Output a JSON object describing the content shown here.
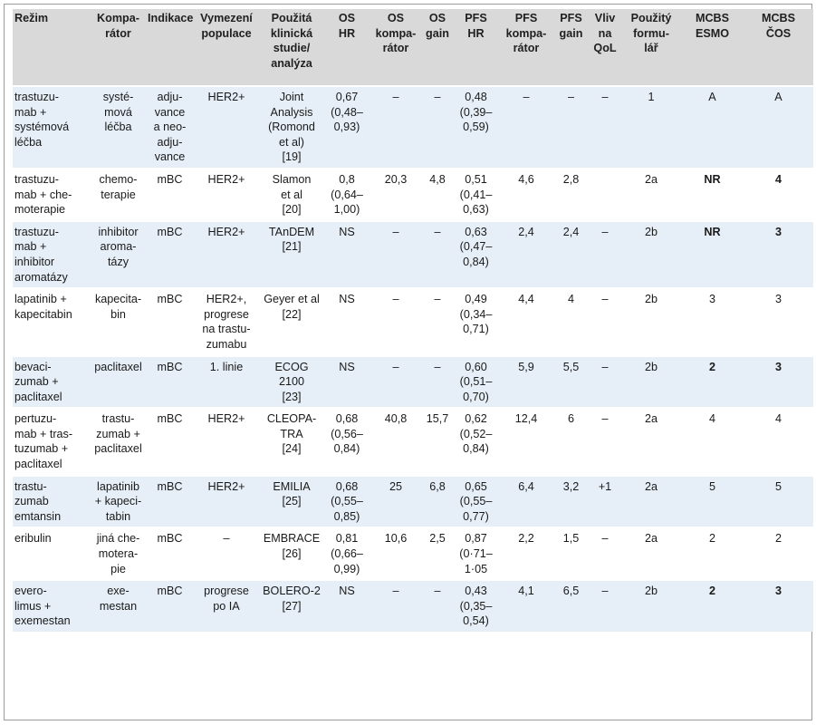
{
  "columns": [
    "Režim",
    "Kompa-\nrátor",
    "Indikace",
    "Vymezení\npopulace",
    "Použitá\nklinická\nstudie/\nanalýza",
    "OS\nHR",
    "OS\nkompa-\nrátor",
    "OS\ngain",
    "PFS\nHR",
    "PFS\nkompa-\nrátor",
    "PFS\ngain",
    "Vliv\nna\nQoL",
    "Použitý\nformu-\nlář",
    "MCBS\nESMO",
    "MCBS\nČOS"
  ],
  "rows": [
    {
      "cells": [
        "trastuzu-\nmab +\nsystémová\nléčba",
        "systé-\nmová\nléčba",
        "adju-\nvance\na neo-\nadju-\nvance",
        "HER2+",
        "Joint\nAnalysis\n(Romond\net al)\n[19]",
        "0,67\n(0,48–\n0,93)",
        "–",
        "–",
        "0,48\n(0,39–\n0,59)",
        "–",
        "–",
        "–",
        "1",
        "A",
        "A"
      ],
      "bold": []
    },
    {
      "cells": [
        "trastuzu-\nmab + che-\nmoterapie",
        "chemo-\nterapie",
        "mBC",
        "HER2+",
        "Slamon\net al\n[20]",
        "0,8\n(0,64–\n1,00)",
        "20,3",
        "4,8",
        "0,51\n(0,41–\n0,63)",
        "4,6",
        "2,8",
        "",
        "2a",
        "NR",
        "4"
      ],
      "bold": [
        13,
        14
      ]
    },
    {
      "cells": [
        "trastuzu-\nmab +\ninhibitor\naromatázy",
        "inhibitor\naroma-\ntázy",
        "mBC",
        "HER2+",
        "TAnDEM\n[21]",
        "NS",
        "–",
        "–",
        "0,63\n(0,47–\n0,84)",
        "2,4",
        "2,4",
        "–",
        "2b",
        "NR",
        "3"
      ],
      "bold": [
        13,
        14
      ]
    },
    {
      "cells": [
        "lapatinib +\nkapecitabin",
        "kapecita-\nbin",
        "mBC",
        "HER2+,\nprogrese\nna trastu-\nzumabu",
        "Geyer et al\n[22]",
        "NS",
        "–",
        "–",
        "0,49\n(0,34–\n0,71)",
        "4,4",
        "4",
        "–",
        "2b",
        "3",
        "3"
      ],
      "bold": []
    },
    {
      "cells": [
        "bevaci-\nzumab +\npaclitaxel",
        "paclitaxel",
        "mBC",
        "1. linie",
        "ECOG\n2100\n[23]",
        "NS",
        "–",
        "–",
        "0,60\n(0,51–\n0,70)",
        "5,9",
        "5,5",
        "–",
        "2b",
        "2",
        "3"
      ],
      "bold": [
        13,
        14
      ]
    },
    {
      "cells": [
        "pertuzu-\nmab + tras-\ntuzumab +\npaclitaxel",
        "trastu-\nzumab +\npaclitaxel",
        "mBC",
        "HER2+",
        "CLEOPA-\nTRA\n[24]",
        "0,68\n(0,56–\n0,84)",
        "40,8",
        "15,7",
        "0,62\n(0,52–\n0,84)",
        "12,4",
        "6",
        "–",
        "2a",
        "4",
        "4"
      ],
      "bold": []
    },
    {
      "cells": [
        "trastu-\nzumab\nemtansin",
        "lapatinib\n+ kapeci-\ntabin",
        "mBC",
        "HER2+",
        "EMILIA\n[25]",
        "0,68\n(0,55–\n0,85)",
        "25",
        "6,8",
        "0,65\n(0,55–\n0,77)",
        "6,4",
        "3,2",
        "+1",
        "2a",
        "5",
        "5"
      ],
      "bold": []
    },
    {
      "cells": [
        "eribulin",
        "jiná che-\nmotera-\npie",
        "mBC",
        "–",
        "EMBRACE\n[26]",
        "0,81\n(0,66–\n0,99)",
        "10,6",
        "2,5",
        "0,87\n(0·71–\n1·05",
        "2,2",
        "1,5",
        "–",
        "2a",
        "2",
        "2"
      ],
      "bold": []
    },
    {
      "cells": [
        "evero-\nlimus +\nexemestan",
        "exe-\nmestan",
        "mBC",
        "progrese\npo IA",
        "BOLERO-2\n[27]",
        "NS",
        "–",
        "–",
        "0,43\n(0,35–\n0,54)",
        "4,1",
        "6,5",
        "–",
        "2b",
        "2",
        "3"
      ],
      "bold": [
        13,
        14
      ]
    }
  ]
}
